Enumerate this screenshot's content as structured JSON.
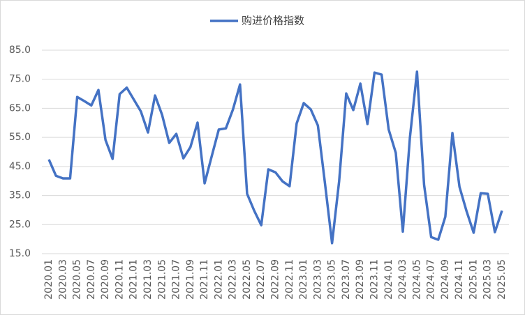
{
  "chart_data": {
    "type": "line",
    "categories": [
      "2020.01",
      null,
      "2020.03",
      null,
      "2020.05",
      null,
      "2020.07",
      null,
      "2020.09",
      null,
      "2020.11",
      null,
      "2021.01",
      null,
      "2021.03",
      null,
      "2021.05",
      null,
      "2021.07",
      null,
      "2021.09",
      null,
      "2021.11",
      null,
      "2022.01",
      null,
      "2022.03",
      null,
      "2022.05",
      null,
      "2022.07",
      null,
      "2022.09",
      null,
      "2022.11",
      null,
      "2023.01",
      null,
      "2023.03",
      null,
      "2023.05",
      null,
      "2023.07",
      null,
      "2023.09",
      null,
      "2023.11",
      null,
      "2024.01",
      null,
      "2024.03",
      null,
      "2024.05",
      null,
      "2024.07",
      null,
      "2024.09",
      null,
      "2024.11",
      null,
      "2025.01",
      null,
      "2025.03",
      null,
      "2025.05"
    ],
    "series": [
      {
        "name": "购进价格指数",
        "color": "#4472c4",
        "values": [
          47.4,
          41.8,
          40.9,
          40.9,
          68.9,
          67.5,
          66.0,
          71.3,
          54.1,
          47.6,
          69.9,
          72.1,
          68.0,
          63.9,
          56.7,
          69.4,
          62.7,
          53.1,
          56.2,
          47.8,
          51.7,
          60.1,
          39.2,
          48.5,
          57.7,
          58.1,
          64.6,
          73.2,
          35.6,
          29.8,
          24.8,
          44.0,
          43.0,
          39.9,
          38.2,
          59.8,
          66.8,
          64.6,
          59.1,
          39.2,
          18.6,
          39.9,
          70.1,
          64.4,
          73.5,
          59.6,
          77.3,
          76.6,
          57.7,
          49.7,
          22.6,
          55.0,
          77.6,
          38.7,
          20.7,
          19.8,
          27.7,
          56.5,
          38.0,
          29.6,
          22.2,
          35.8,
          35.6,
          22.4,
          29.8
        ]
      }
    ],
    "ylim": [
      15,
      85
    ],
    "yticks": [
      {
        "value": 15,
        "label": "15.0"
      },
      {
        "value": 25,
        "label": "25.0"
      },
      {
        "value": 35,
        "label": "35.0"
      },
      {
        "value": 45,
        "label": "45.0"
      },
      {
        "value": 55,
        "label": "55.0"
      },
      {
        "value": 65,
        "label": "65.0"
      },
      {
        "value": 75,
        "label": "75.0"
      },
      {
        "value": 85,
        "label": "85.0"
      }
    ],
    "grid": true,
    "legend": "top"
  }
}
